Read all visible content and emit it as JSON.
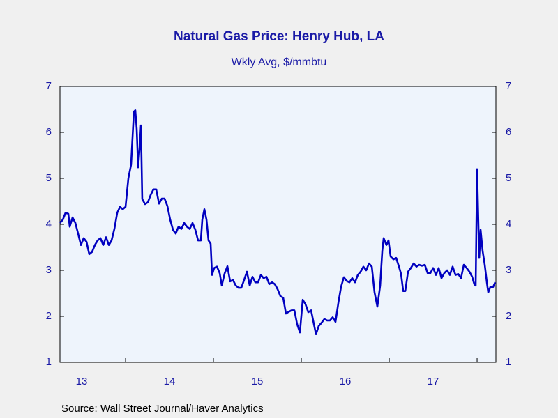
{
  "chart_data": {
    "type": "line",
    "title": "Natural Gas Price: Henry Hub, LA",
    "subtitle": "Wkly Avg, $/mmbtu",
    "source": "Source:  Wall Street Journal/Haver Analytics",
    "color": "#0000c0",
    "x": [
      2013.254,
      2013.286,
      2013.317,
      2013.349,
      2013.365,
      2013.397,
      2013.429,
      2013.46,
      2013.492,
      2013.524,
      2013.556,
      2013.587,
      2013.619,
      2013.651,
      2013.683,
      2013.714,
      2013.746,
      2013.778,
      2013.81,
      2013.841,
      2013.873,
      2013.905,
      2013.937,
      2013.968,
      2014.0,
      2014.032,
      2014.063,
      2014.095,
      2014.111,
      2014.127,
      2014.143,
      2014.159,
      2014.175,
      2014.19,
      2014.222,
      2014.254,
      2014.286,
      2014.317,
      2014.349,
      2014.381,
      2014.413,
      2014.444,
      2014.476,
      2014.508,
      2014.54,
      2014.571,
      2014.603,
      2014.635,
      2014.667,
      2014.698,
      2014.73,
      2014.762,
      2014.794,
      2014.825,
      2014.857,
      2014.873,
      2014.897,
      2014.921,
      2014.944,
      2014.968,
      2014.984,
      2015.008,
      2015.04,
      2015.071,
      2015.095,
      2015.127,
      2015.159,
      2015.19,
      2015.222,
      2015.254,
      2015.286,
      2015.317,
      2015.349,
      2015.381,
      2015.413,
      2015.444,
      2015.476,
      2015.508,
      2015.54,
      2015.571,
      2015.603,
      2015.635,
      2015.667,
      2015.698,
      2015.73,
      2015.762,
      2015.794,
      2015.825,
      2015.857,
      2015.889,
      2015.921,
      2015.952,
      2015.984,
      2016.016,
      2016.048,
      2016.079,
      2016.111,
      2016.143,
      2016.167,
      2016.198,
      2016.23,
      2016.262,
      2016.294,
      2016.325,
      2016.357,
      2016.389,
      2016.421,
      2016.452,
      2016.484,
      2016.516,
      2016.548,
      2016.579,
      2016.611,
      2016.643,
      2016.675,
      2016.706,
      2016.738,
      2016.77,
      2016.802,
      2016.833,
      2016.865,
      2016.897,
      2016.921,
      2016.937,
      2016.968,
      2016.992,
      2017.016,
      2017.048,
      2017.079,
      2017.111,
      2017.135,
      2017.159,
      2017.183,
      2017.214,
      2017.246,
      2017.278,
      2017.31,
      2017.341,
      2017.373,
      2017.405,
      2017.437,
      2017.468,
      2017.5,
      2017.532,
      2017.563,
      2017.595,
      2017.627,
      2017.659,
      2017.69,
      2017.722,
      2017.754,
      2017.786,
      2017.817,
      2017.849,
      2017.881,
      2017.913,
      2017.944,
      2017.968,
      2017.984,
      2018.0,
      2018.024,
      2018.04,
      2018.063,
      2018.087,
      2018.111,
      2018.127,
      2018.151,
      2018.183,
      2018.206
    ],
    "values": [
      4.03,
      4.1,
      4.25,
      4.23,
      3.95,
      4.15,
      4.03,
      3.8,
      3.55,
      3.7,
      3.62,
      3.35,
      3.4,
      3.55,
      3.65,
      3.7,
      3.55,
      3.72,
      3.55,
      3.65,
      3.9,
      4.25,
      4.38,
      4.33,
      4.38,
      5.0,
      5.3,
      6.45,
      6.48,
      6.07,
      5.24,
      5.62,
      6.15,
      4.55,
      4.44,
      4.48,
      4.64,
      4.76,
      4.76,
      4.45,
      4.56,
      4.56,
      4.4,
      4.1,
      3.88,
      3.8,
      3.95,
      3.9,
      4.03,
      3.95,
      3.9,
      4.03,
      3.88,
      3.65,
      3.65,
      4.1,
      4.33,
      4.1,
      3.65,
      3.58,
      2.9,
      3.05,
      3.08,
      2.94,
      2.67,
      2.93,
      3.09,
      2.76,
      2.79,
      2.67,
      2.62,
      2.62,
      2.79,
      2.97,
      2.67,
      2.86,
      2.74,
      2.74,
      2.9,
      2.83,
      2.86,
      2.7,
      2.74,
      2.7,
      2.59,
      2.44,
      2.4,
      2.06,
      2.1,
      2.13,
      2.13,
      1.83,
      1.65,
      2.36,
      2.26,
      2.09,
      2.13,
      1.83,
      1.61,
      1.79,
      1.86,
      1.94,
      1.91,
      1.91,
      1.98,
      1.88,
      2.29,
      2.64,
      2.85,
      2.77,
      2.74,
      2.83,
      2.74,
      2.9,
      2.97,
      3.08,
      3.0,
      3.15,
      3.08,
      2.52,
      2.21,
      2.67,
      3.42,
      3.7,
      3.55,
      3.65,
      3.3,
      3.24,
      3.27,
      3.08,
      2.92,
      2.55,
      2.55,
      2.97,
      3.05,
      3.15,
      3.08,
      3.12,
      3.1,
      3.12,
      2.94,
      2.94,
      3.05,
      2.9,
      3.05,
      2.83,
      2.94,
      3.0,
      2.9,
      3.08,
      2.9,
      2.92,
      2.83,
      3.12,
      3.05,
      2.97,
      2.86,
      2.7,
      2.67,
      5.2,
      3.27,
      3.88,
      3.42,
      3.12,
      2.74,
      2.52,
      2.64,
      2.64,
      2.74
    ],
    "xlim": [
      2013.254,
      2018.214
    ],
    "xticks": [
      {
        "value": 2013.5,
        "label": "13"
      },
      {
        "value": 2014.5,
        "label": "14"
      },
      {
        "value": 2015.5,
        "label": "15"
      },
      {
        "value": 2016.5,
        "label": "16"
      },
      {
        "value": 2017.5,
        "label": "17"
      }
    ],
    "ylim": [
      1,
      7
    ],
    "yticks": [
      1,
      2,
      3,
      4,
      5,
      6,
      7
    ],
    "y2lim": [
      1,
      7
    ],
    "y2ticks": [
      1,
      2,
      3,
      4,
      5,
      6,
      7
    ]
  }
}
